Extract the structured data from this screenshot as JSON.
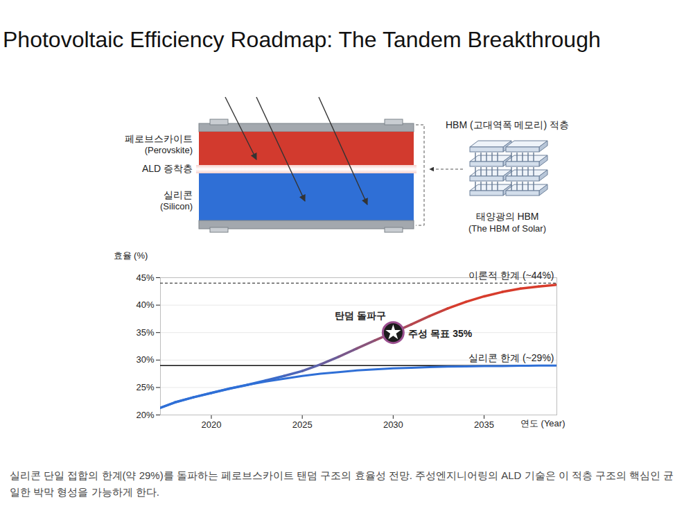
{
  "title": "Photovoltaic Efficiency Roadmap: The Tandem Breakthrough",
  "diagram": {
    "layers": [
      {
        "label": "페로브스카이트",
        "sublabel": "(Perovskite)",
        "color": "#d23a2e"
      },
      {
        "label": "ALD 증착층",
        "color": "#f6d0cc"
      },
      {
        "label": "실리콘",
        "sublabel": "(Silicon)",
        "color": "#2f6fd6"
      }
    ],
    "hbm": {
      "title": "HBM (고대역폭 메모리) 적층",
      "label": "태양광의 HBM",
      "sublabel": "(The HBM of Solar)"
    }
  },
  "chart_data": {
    "type": "line",
    "x_label": "연도 (Year)",
    "y_label": "효율 (%)",
    "x": [
      2017.2,
      2018,
      2019,
      2020,
      2021,
      2022,
      2023,
      2024,
      2025,
      2026,
      2027,
      2028,
      2029,
      2030,
      2031,
      2032,
      2033,
      2034,
      2035,
      2036,
      2037,
      2038,
      2039
    ],
    "series": [
      {
        "color": "#2f6fd6",
        "values": [
          21.3,
          22.3,
          23.2,
          24.0,
          24.8,
          25.5,
          26.1,
          26.6,
          27.1,
          27.5,
          27.8,
          28.1,
          28.3,
          28.5,
          28.6,
          28.7,
          28.8,
          28.85,
          28.9,
          28.9,
          28.95,
          29.0,
          29.0
        ]
      },
      {
        "color": "#d73c2c",
        "values": [
          21.3,
          22.3,
          23.2,
          24.0,
          24.8,
          25.5,
          26.3,
          27.1,
          28.0,
          29.2,
          30.6,
          32.1,
          33.6,
          35.0,
          36.5,
          38.0,
          39.4,
          40.6,
          41.6,
          42.4,
          43.0,
          43.4,
          43.7
        ]
      }
    ],
    "xlim": [
      2017.2,
      2039
    ],
    "xticks": [
      2020,
      2025,
      2030,
      2035
    ],
    "ylim": [
      20,
      45
    ],
    "yticks": [
      {
        "value": 20,
        "label": "20%"
      },
      {
        "value": 25,
        "label": "25%"
      },
      {
        "value": 30,
        "label": "30%"
      },
      {
        "value": 35,
        "label": "35%"
      },
      {
        "value": 40,
        "label": "40%"
      },
      {
        "value": 45,
        "label": "45%"
      }
    ],
    "grid": true,
    "reference_lines": [
      {
        "value": 44,
        "label": "이론적 한계 (~44%)",
        "line_style": "dashed"
      },
      {
        "value": 29,
        "label": "실리콘 한계 (~29%)",
        "line_style": "solid"
      }
    ],
    "highlight": {
      "x": 2030,
      "y": 35,
      "marker": "star",
      "labels": [
        "탄덤 돌파구",
        "주성 목표 35%"
      ]
    }
  },
  "caption": "실리콘 단일 접합의 한계(약 29%)를 돌파하는 페로브스카이트 탠덤 구조의 효율성 전망. 주성엔지니어링의 ALD 기술은 이 적층 구조의 핵심인 균일한 박막 형성을 가능하게 한다."
}
